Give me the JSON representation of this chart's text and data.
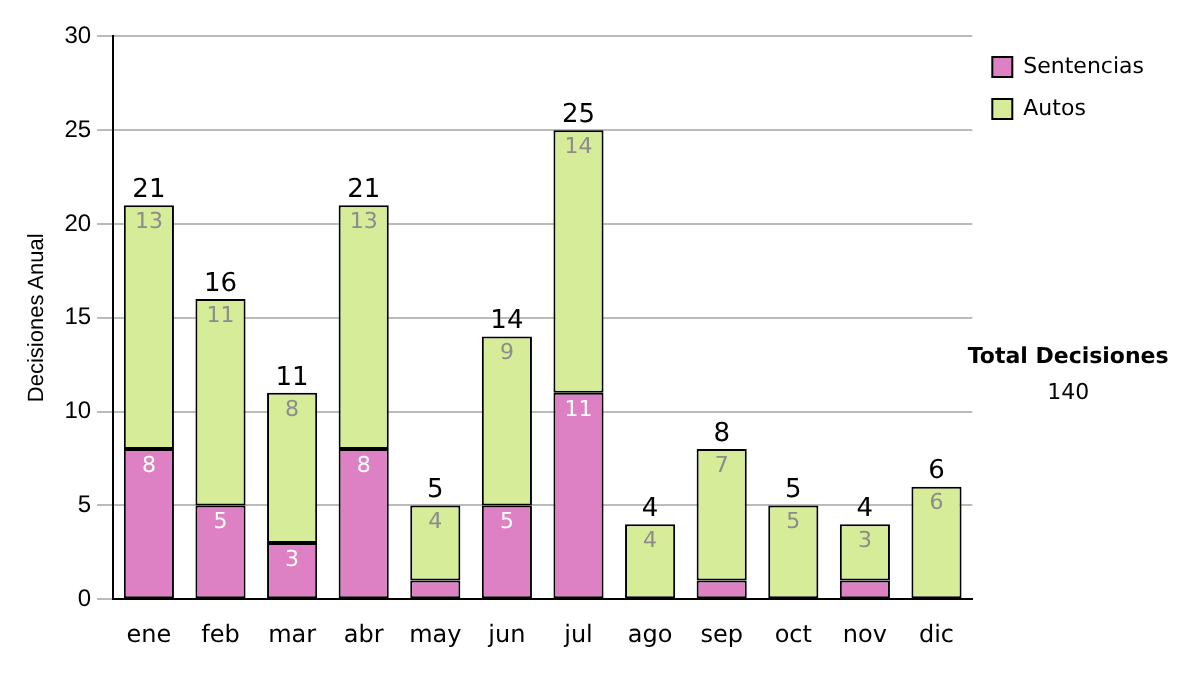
{
  "chart_data": {
    "type": "bar",
    "stacked": true,
    "ylabel": "Decisiones Anual",
    "categories": [
      "ene",
      "feb",
      "mar",
      "abr",
      "may",
      "jun",
      "jul",
      "ago",
      "sep",
      "oct",
      "nov",
      "dic"
    ],
    "series": [
      {
        "name": "Sentencias",
        "color": "#dd80c4",
        "values": [
          8,
          5,
          3,
          8,
          1,
          5,
          11,
          0,
          1,
          0,
          1,
          0
        ],
        "value_labels": [
          "8",
          "5",
          "3",
          "8",
          null,
          "5",
          "11",
          null,
          null,
          null,
          null,
          null
        ]
      },
      {
        "name": "Autos",
        "color": "#d6ec98",
        "values": [
          13,
          11,
          8,
          13,
          4,
          9,
          14,
          4,
          7,
          5,
          3,
          6
        ],
        "value_labels": [
          "13",
          "11",
          "8",
          "13",
          "4",
          "9",
          "14",
          "4",
          "7",
          "5",
          "3",
          "6"
        ]
      }
    ],
    "totals": [
      "21",
      "16",
      "11",
      "21",
      "5",
      "14",
      "25",
      "4",
      "8",
      "5",
      "4",
      "6"
    ],
    "ylim": [
      0,
      30
    ],
    "yticks": [
      0,
      5,
      10,
      15,
      20,
      25,
      30
    ],
    "grid": "y",
    "legend": "right",
    "annotations": [
      "Total Decisiones",
      "140"
    ]
  }
}
